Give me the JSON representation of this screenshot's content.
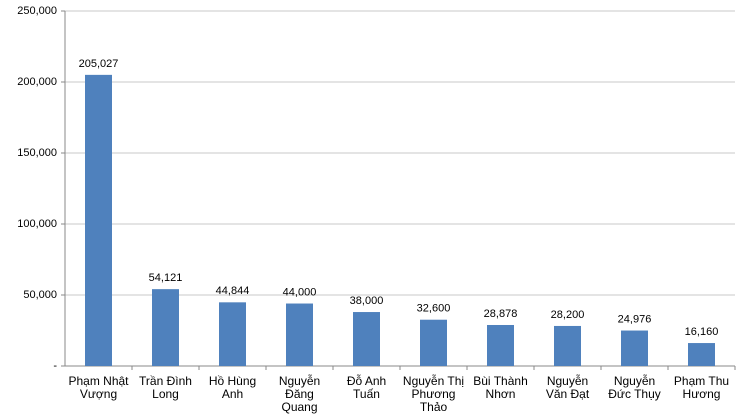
{
  "chart_data": {
    "type": "bar",
    "categories": [
      "Phạm Nhật Vượng",
      "Trần Đình Long",
      "Hồ Hùng Anh",
      "Nguyễn Đăng Quang",
      "Đỗ Anh Tuấn",
      "Nguyễn Thị Phương Thảo",
      "Bùi Thành Nhơn",
      "Nguyễn Văn Đạt",
      "Nguyễn Đức Thụy",
      "Phạm Thu Hương"
    ],
    "values": [
      205027,
      54121,
      44844,
      44000,
      38000,
      32600,
      28878,
      28200,
      24976,
      16160
    ],
    "value_labels": [
      "205,027",
      "54,121",
      "44,844",
      "44,000",
      "38,000",
      "32,600",
      "28,878",
      "28,200",
      "24,976",
      "16,160"
    ],
    "color": "#4f81bd",
    "ylim": [
      0,
      250000
    ],
    "yticks": [
      {
        "value": 0,
        "label": "-"
      },
      {
        "value": 50000,
        "label": "50,000"
      },
      {
        "value": 100000,
        "label": "100,000"
      },
      {
        "value": 150000,
        "label": "150,000"
      },
      {
        "value": 200000,
        "label": "200,000"
      },
      {
        "value": 250000,
        "label": "250,000"
      }
    ],
    "grid": true
  }
}
